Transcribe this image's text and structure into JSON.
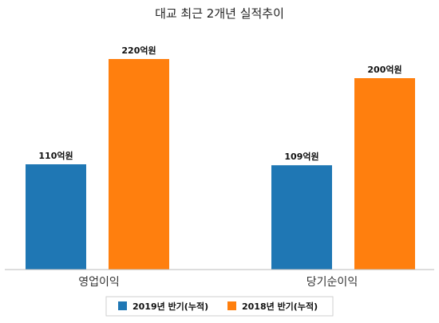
{
  "chart_data": {
    "type": "bar",
    "title": "대교 최근 2개년 실적추이",
    "categories": [
      "영업이익",
      "당기순이익"
    ],
    "series": [
      {
        "name": "2019년 반기(누적)",
        "values": [
          110,
          109
        ],
        "labels": [
          "110억원",
          "109억원"
        ],
        "color": "#1f77b4"
      },
      {
        "name": "2018년 반기(누적)",
        "values": [
          220,
          200
        ],
        "labels": [
          "220억원",
          "200억원"
        ],
        "color": "#ff7f0e"
      }
    ],
    "unit": "억원",
    "ylim": [
      0,
      250
    ],
    "grid": false,
    "legend_position": "bottom"
  }
}
